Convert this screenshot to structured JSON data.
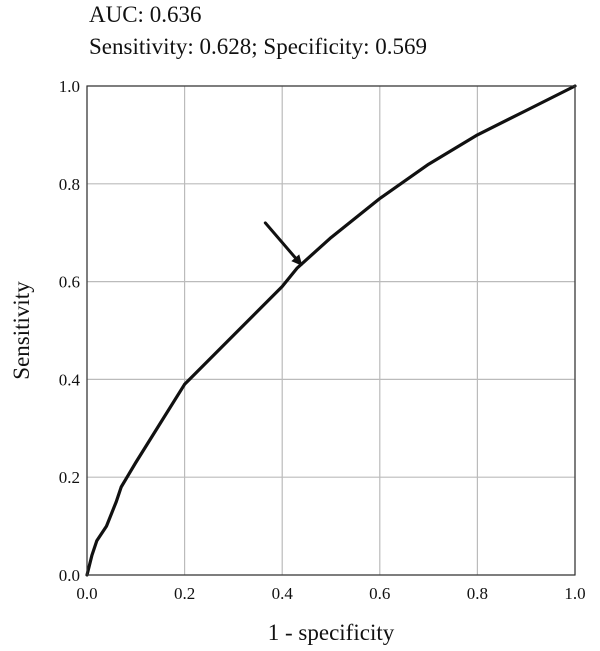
{
  "header": {
    "auc_label": "AUC: 0.636",
    "sens_spec_label": "Sensitivity: 0.628; Specificity: 0.569"
  },
  "chart_data": {
    "type": "line",
    "title": "",
    "xlabel": "1 - specificity",
    "ylabel": "Sensitivity",
    "xlim": [
      0,
      1
    ],
    "ylim": [
      0,
      1
    ],
    "xticks": [
      0,
      0.2,
      0.4,
      0.6,
      0.8,
      1.0
    ],
    "xtick_labels": [
      "0.0",
      "0.2",
      "0.4",
      "0.6",
      "0.8",
      "1.0"
    ],
    "yticks": [
      0,
      0.2,
      0.4,
      0.6,
      0.8,
      1.0
    ],
    "ytick_labels": [
      "0.0",
      "0.2",
      "0.4",
      "0.6",
      "0.8",
      "1.0"
    ],
    "grid": true,
    "legend": "none",
    "series": [
      {
        "x": [
          0,
          0.01,
          0.02,
          0.04,
          0.06,
          0.07,
          0.1,
          0.15,
          0.2,
          0.3,
          0.4,
          0.431,
          0.5,
          0.6,
          0.7,
          0.8,
          0.9,
          1.0
        ],
        "y": [
          0,
          0.04,
          0.07,
          0.1,
          0.15,
          0.18,
          0.23,
          0.31,
          0.39,
          0.49,
          0.59,
          0.628,
          0.69,
          0.77,
          0.84,
          0.9,
          0.95,
          1.0
        ]
      }
    ],
    "annotations": [
      {
        "type": "arrow",
        "target_x": 0.431,
        "target_y": 0.628,
        "direction": "from-upper-left"
      }
    ],
    "colors": {
      "line": "#111111",
      "grid": "#bbbbbb",
      "frame": "#333333"
    }
  }
}
